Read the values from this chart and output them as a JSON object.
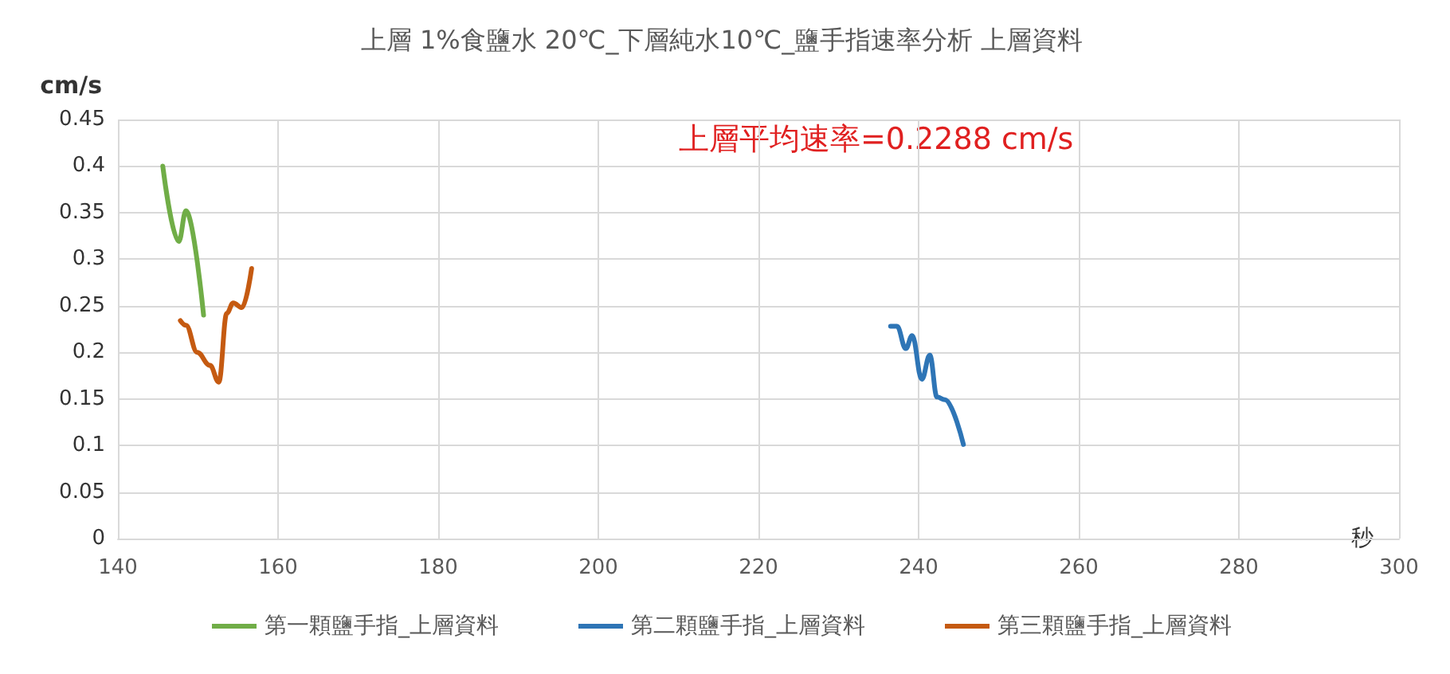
{
  "chart_data": {
    "type": "line",
    "title": "上層 1%食鹽水 20℃_下層純水10℃_鹽手指速率分析 上層資料",
    "xlabel": "秒",
    "ylabel": "cm/s",
    "annotations": [
      "上層平均速率=0.2288 cm/s"
    ],
    "xlim": [
      140,
      300
    ],
    "xticks": [
      140,
      160,
      180,
      200,
      220,
      240,
      260,
      280,
      300
    ],
    "ylim": [
      0,
      0.45
    ],
    "yticks": [
      0,
      0.05,
      0.1,
      0.15,
      0.2,
      0.25,
      0.3,
      0.35,
      0.4,
      0.45
    ],
    "grid": true,
    "legend": "bottom",
    "marker": "none",
    "series": [
      {
        "name": "第一顆鹽手指_上層資料",
        "color": "#70ad47",
        "x": [
          145.6,
          147.6,
          148.5,
          150.7
        ],
        "values": [
          0.4,
          0.319,
          0.352,
          0.24
        ]
      },
      {
        "name": "第二顆鹽手指_上層資料",
        "color": "#2e75b6",
        "x": [
          236.5,
          237.3,
          238.4,
          239.2,
          240.4,
          241.4,
          242.3,
          243.3,
          245.6
        ],
        "values": [
          0.228,
          0.228,
          0.204,
          0.218,
          0.171,
          0.197,
          0.152,
          0.149,
          0.101
        ]
      },
      {
        "name": "第三顆鹽手指_上層資料",
        "color": "#c55a11",
        "x": [
          147.8,
          148.5,
          149.9,
          151.5,
          152.6,
          153.6,
          154.4,
          155.5,
          156.7
        ],
        "values": [
          0.234,
          0.229,
          0.2,
          0.186,
          0.168,
          0.242,
          0.253,
          0.248,
          0.29
        ]
      }
    ]
  }
}
